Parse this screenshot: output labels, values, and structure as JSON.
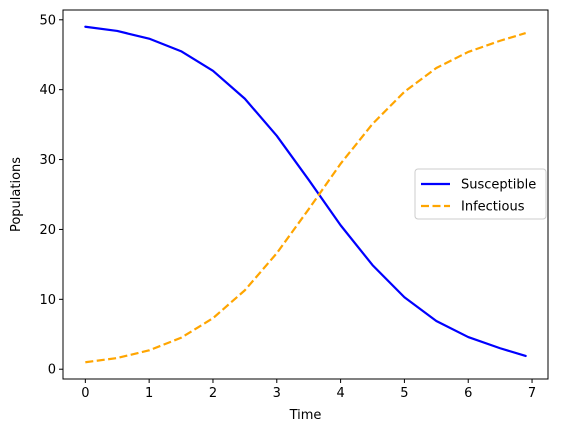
{
  "chart_data": {
    "type": "line",
    "xlabel": "Time",
    "ylabel": "Populations",
    "xlim": [
      -0.35,
      7.25
    ],
    "ylim": [
      -1.4,
      51.4
    ],
    "xticks": [
      0,
      1,
      2,
      3,
      4,
      5,
      6,
      7
    ],
    "yticks": [
      0,
      10,
      20,
      30,
      40,
      50
    ],
    "grid": false,
    "legend_position": "center-right",
    "series": [
      {
        "name": "Susceptible",
        "color": "#0000ff",
        "style": "solid",
        "x": [
          0,
          0.5,
          1.0,
          1.5,
          2.0,
          2.5,
          3.0,
          3.5,
          4.0,
          4.5,
          5.0,
          5.5,
          6.0,
          6.5,
          6.9
        ],
        "y": [
          49.0,
          48.4,
          47.3,
          45.5,
          42.7,
          38.7,
          33.4,
          27.1,
          20.6,
          14.9,
          10.3,
          6.9,
          4.6,
          3.0,
          1.9
        ]
      },
      {
        "name": "Infectious",
        "color": "#ffa500",
        "style": "dashed",
        "x": [
          0,
          0.5,
          1.0,
          1.5,
          2.0,
          2.5,
          3.0,
          3.5,
          4.0,
          4.5,
          5.0,
          5.5,
          6.0,
          6.5,
          6.9
        ],
        "y": [
          1.0,
          1.6,
          2.7,
          4.5,
          7.3,
          11.3,
          16.6,
          22.9,
          29.4,
          35.1,
          39.7,
          43.1,
          45.4,
          47.0,
          48.1
        ]
      }
    ]
  }
}
